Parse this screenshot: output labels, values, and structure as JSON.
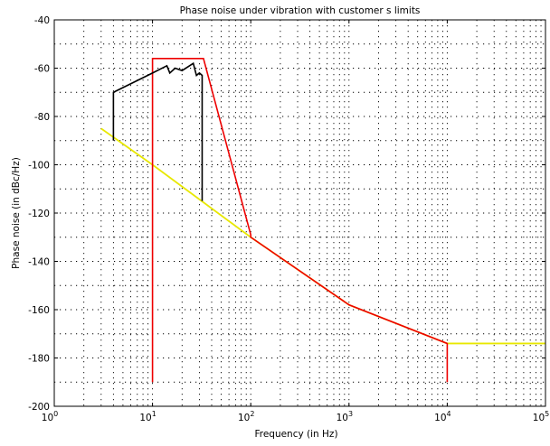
{
  "chart_data": {
    "type": "line",
    "title": "Phase noise under vibration with customer s limits",
    "xlabel": "Frequency (in Hz)",
    "ylabel": "Phase noise (in dBc/Hz)",
    "xscale": "log",
    "xlim": [
      1,
      100000
    ],
    "ylim": [
      -200,
      -40
    ],
    "grid": true,
    "y_ticks": [
      -200,
      -180,
      -160,
      -140,
      -120,
      -100,
      -80,
      -60,
      -40
    ],
    "x_ticks": [
      {
        "value": 1,
        "base": "10",
        "exp": "0"
      },
      {
        "value": 10,
        "base": "10",
        "exp": "1"
      },
      {
        "value": 100,
        "base": "10",
        "exp": "2"
      },
      {
        "value": 1000,
        "base": "10",
        "exp": "3"
      },
      {
        "value": 10000,
        "base": "10",
        "exp": "4"
      },
      {
        "value": 100000,
        "base": "10",
        "exp": "5"
      }
    ],
    "series": [
      {
        "color": "#e8e800",
        "stroke_width": 1.8,
        "x": [
          3,
          10,
          100,
          1000,
          10000,
          100000
        ],
        "y": [
          -85,
          -100,
          -130,
          -158,
          -174,
          -174
        ]
      },
      {
        "color": "#ee0000",
        "stroke_width": 1.6,
        "x": [
          10,
          10,
          33,
          100,
          100,
          1000,
          10000,
          10000
        ],
        "y": [
          -190,
          -56,
          -56,
          -129,
          -130,
          -158,
          -174,
          -190
        ]
      },
      {
        "color": "#000000",
        "stroke_width": 1.6,
        "x": [
          4,
          4,
          10,
          14,
          15,
          17,
          20,
          26,
          28,
          30,
          32,
          32
        ],
        "y": [
          -90,
          -70,
          -62,
          -59,
          -62,
          -60,
          -61,
          -58,
          -63,
          -62,
          -63,
          -115
        ]
      }
    ]
  }
}
